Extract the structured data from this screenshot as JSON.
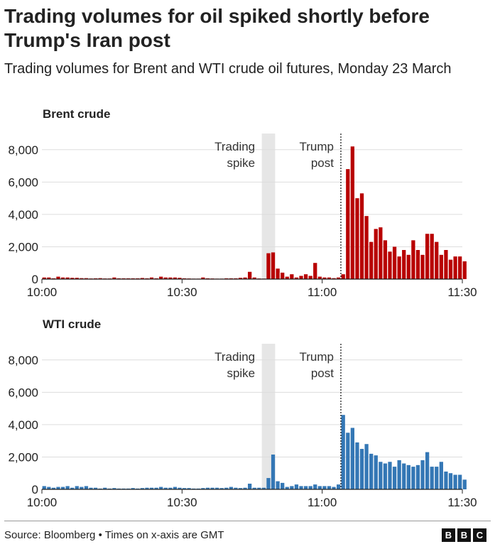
{
  "title": "Trading volumes for oil spiked shortly before Trump's Iran post",
  "subtitle": "Trading volumes for Brent and WTI crude oil futures, Monday 23 March",
  "footer": "Source: Bloomberg • Times on x-axis are GMT",
  "logo": [
    "B",
    "B",
    "C"
  ],
  "chart_data": [
    {
      "type": "bar",
      "title": "Brent crude",
      "color": "#b80000",
      "x_range": [
        "10:00",
        "11:30"
      ],
      "ylim": [
        0,
        9000
      ],
      "y_ticks": [
        "0",
        "2,000",
        "4,000",
        "6,000",
        "8,000"
      ],
      "x_ticks": [
        "10:00",
        "10:30",
        "11:00",
        "11:30"
      ],
      "annotations": [
        {
          "label": [
            "Trading",
            "spike"
          ],
          "kind": "shaded-band",
          "start_minute": 47,
          "end_minute": 50
        },
        {
          "label": [
            "Trump",
            "post"
          ],
          "kind": "dotted-line",
          "minute": 64
        }
      ],
      "values": [
        100,
        100,
        50,
        150,
        100,
        100,
        80,
        80,
        60,
        60,
        40,
        50,
        60,
        40,
        40,
        100,
        50,
        50,
        50,
        50,
        50,
        70,
        50,
        100,
        50,
        150,
        100,
        100,
        100,
        80,
        50,
        40,
        30,
        30,
        100,
        50,
        40,
        30,
        30,
        50,
        50,
        50,
        80,
        100,
        450,
        100,
        40,
        30,
        1600,
        1650,
        650,
        400,
        150,
        300,
        100,
        200,
        300,
        200,
        1000,
        150,
        100,
        100,
        60,
        100,
        300,
        6800,
        8200,
        5000,
        5300,
        3900,
        2300,
        3100,
        3200,
        2400,
        1700,
        2000,
        1400,
        1800,
        1500,
        2400,
        1800,
        1500,
        2800,
        2800,
        2300,
        1500,
        1800,
        1200,
        1400,
        1400,
        1100
      ]
    },
    {
      "type": "bar",
      "title": "WTI crude",
      "color": "#3477b5",
      "x_range": [
        "10:00",
        "11:30"
      ],
      "ylim": [
        0,
        9000
      ],
      "y_ticks": [
        "0",
        "2,000",
        "4,000",
        "6,000",
        "8,000"
      ],
      "x_ticks": [
        "10:00",
        "10:30",
        "11:00",
        "11:30"
      ],
      "annotations": [
        {
          "label": [
            "Trading",
            "spike"
          ],
          "kind": "shaded-band",
          "start_minute": 47,
          "end_minute": 50
        },
        {
          "label": [
            "Trump",
            "post"
          ],
          "kind": "dotted-line",
          "minute": 64
        }
      ],
      "values": [
        200,
        150,
        100,
        150,
        150,
        200,
        100,
        200,
        150,
        200,
        100,
        100,
        50,
        100,
        50,
        80,
        50,
        50,
        50,
        80,
        50,
        80,
        100,
        100,
        100,
        150,
        100,
        100,
        150,
        100,
        80,
        80,
        50,
        50,
        80,
        100,
        100,
        100,
        80,
        100,
        150,
        100,
        80,
        100,
        350,
        100,
        100,
        100,
        700,
        2150,
        500,
        400,
        150,
        200,
        300,
        200,
        200,
        200,
        300,
        200,
        200,
        200,
        150,
        300,
        4600,
        3500,
        3800,
        2900,
        2500,
        2800,
        2200,
        2100,
        1700,
        1600,
        1700,
        1400,
        1800,
        1600,
        1500,
        1400,
        1500,
        1800,
        2300,
        1400,
        1400,
        1700,
        1100,
        1000,
        900,
        900,
        600
      ]
    }
  ]
}
